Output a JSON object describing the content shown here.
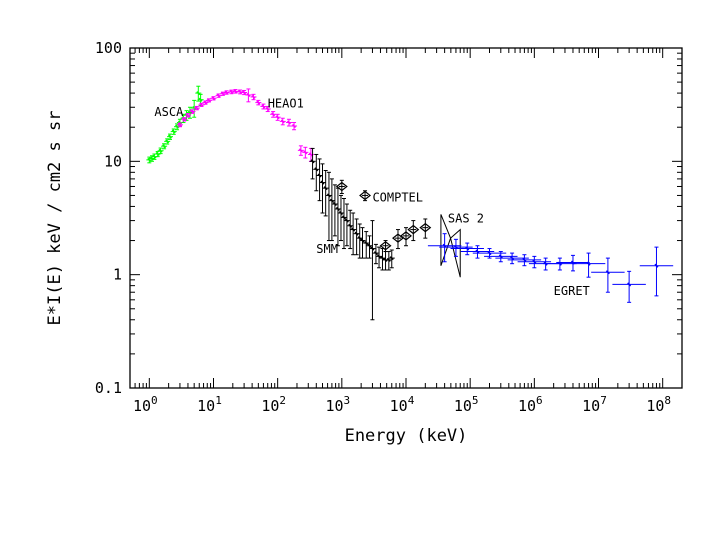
{
  "chart_data": {
    "type": "scatter",
    "xlabel": "Energy (keV)",
    "ylabel": "E*I(E) keV / cm2 s sr",
    "xscale": "log",
    "yscale": "log",
    "xlim": [
      0.5,
      200000000
    ],
    "ylim": [
      0.1,
      100
    ],
    "grid": false,
    "x_tick_labels": [
      "10^0",
      "10^1",
      "10^2",
      "10^3",
      "10^4",
      "10^5",
      "10^6",
      "10^7",
      "10^8"
    ],
    "y_tick_labels": [
      "0.1",
      "1",
      "10",
      "100"
    ],
    "annotations": [
      {
        "text": "ASCA",
        "x": 1.2,
        "y": 25
      },
      {
        "text": "HEAO1",
        "x": 70,
        "y": 30
      },
      {
        "text": "COMPTEL",
        "x": 3000,
        "y": 4.4
      },
      {
        "text": "SAS 2",
        "x": 45000,
        "y": 2.9
      },
      {
        "text": "SMM",
        "x": 400,
        "y": 1.55
      },
      {
        "text": "EGRET",
        "x": 2000000,
        "y": 0.66
      }
    ],
    "series": [
      {
        "name": "ASCA",
        "color": "#00ff00",
        "marker": "cross",
        "points": [
          {
            "x": 1.0,
            "y": 10.3,
            "ey": 0.6
          },
          {
            "x": 1.1,
            "y": 10.6,
            "ey": 0.6
          },
          {
            "x": 1.2,
            "y": 11.0,
            "ey": 0.6
          },
          {
            "x": 1.35,
            "y": 11.6,
            "ey": 0.6
          },
          {
            "x": 1.5,
            "y": 12.4,
            "ey": 0.7
          },
          {
            "x": 1.7,
            "y": 13.6,
            "ey": 0.7
          },
          {
            "x": 1.9,
            "y": 15.0,
            "ey": 0.8
          },
          {
            "x": 2.1,
            "y": 16.5,
            "ey": 0.9
          },
          {
            "x": 2.4,
            "y": 18.3,
            "ey": 1.0
          },
          {
            "x": 2.7,
            "y": 20.2,
            "ey": 1.2
          },
          {
            "x": 3.0,
            "y": 22.0,
            "ey": 1.5
          },
          {
            "x": 3.4,
            "y": 24.0,
            "ey": 2.0
          },
          {
            "x": 3.8,
            "y": 25.5,
            "ey": 2.5
          },
          {
            "x": 4.3,
            "y": 27.0,
            "ey": 3.0
          },
          {
            "x": 5.0,
            "y": 29.5,
            "ey": 5.0
          },
          {
            "x": 5.8,
            "y": 40.0,
            "ey": 6.0
          },
          {
            "x": 6.3,
            "y": 35.0,
            "ey": 4.0
          }
        ]
      },
      {
        "name": "HEAO1",
        "color": "#ff00ff",
        "marker": "cross",
        "points": [
          {
            "x": 3.0,
            "y": 21.0,
            "ey": 0.8
          },
          {
            "x": 3.5,
            "y": 23.5,
            "ey": 0.8
          },
          {
            "x": 4.0,
            "y": 25.5,
            "ey": 0.9
          },
          {
            "x": 4.7,
            "y": 27.5,
            "ey": 1.0
          },
          {
            "x": 5.5,
            "y": 29.5,
            "ey": 1.0
          },
          {
            "x": 6.5,
            "y": 31.5,
            "ey": 1.0
          },
          {
            "x": 7.5,
            "y": 33.0,
            "ey": 1.1
          },
          {
            "x": 8.5,
            "y": 34.5,
            "ey": 1.1
          },
          {
            "x": 10,
            "y": 36.0,
            "ey": 1.2
          },
          {
            "x": 12,
            "y": 38.0,
            "ey": 1.3
          },
          {
            "x": 14,
            "y": 39.5,
            "ey": 1.3
          },
          {
            "x": 16,
            "y": 40.5,
            "ey": 1.4
          },
          {
            "x": 19,
            "y": 41.0,
            "ey": 1.5
          },
          {
            "x": 22,
            "y": 41.5,
            "ey": 1.5
          },
          {
            "x": 26,
            "y": 41.0,
            "ey": 1.6
          },
          {
            "x": 30,
            "y": 40.5,
            "ey": 1.7
          },
          {
            "x": 35,
            "y": 38.5,
            "ey": 5.0
          },
          {
            "x": 42,
            "y": 37.0,
            "ey": 2.0
          },
          {
            "x": 50,
            "y": 33.0,
            "ey": 1.5
          },
          {
            "x": 60,
            "y": 30.5,
            "ey": 1.5
          },
          {
            "x": 70,
            "y": 29.0,
            "ey": 1.5
          },
          {
            "x": 85,
            "y": 26.0,
            "ey": 1.5
          },
          {
            "x": 100,
            "y": 24.5,
            "ey": 1.5
          },
          {
            "x": 120,
            "y": 22.5,
            "ey": 1.5
          },
          {
            "x": 150,
            "y": 22.0,
            "ey": 1.5
          },
          {
            "x": 180,
            "y": 20.5,
            "ey": 1.5
          },
          {
            "x": 230,
            "y": 12.5,
            "ey": 1.2
          },
          {
            "x": 270,
            "y": 12.0,
            "ey": 1.3
          },
          {
            "x": 330,
            "y": 11.5,
            "ey": 1.5
          }
        ]
      },
      {
        "name": "SMM",
        "color": "#000000",
        "marker": "cross",
        "points": [
          {
            "x": 350,
            "y": 10.0,
            "ey": 3.0
          },
          {
            "x": 400,
            "y": 8.5,
            "ey": 3.0
          },
          {
            "x": 450,
            "y": 7.5,
            "ey": 3.0
          },
          {
            "x": 500,
            "y": 6.5,
            "ey": 3.0
          },
          {
            "x": 560,
            "y": 5.8,
            "ey": 2.5
          },
          {
            "x": 630,
            "y": 5.0,
            "ey": 3.0
          },
          {
            "x": 700,
            "y": 4.5,
            "ey": 2.5
          },
          {
            "x": 780,
            "y": 4.2,
            "ey": 2.0
          },
          {
            "x": 870,
            "y": 3.8,
            "ey": 2.0
          },
          {
            "x": 970,
            "y": 3.5,
            "ey": 1.5
          },
          {
            "x": 1080,
            "y": 3.2,
            "ey": 1.5
          },
          {
            "x": 1200,
            "y": 3.0,
            "ey": 1.2
          },
          {
            "x": 1350,
            "y": 2.7,
            "ey": 1.0
          },
          {
            "x": 1500,
            "y": 2.5,
            "ey": 1.0
          },
          {
            "x": 1700,
            "y": 2.3,
            "ey": 0.8
          },
          {
            "x": 1900,
            "y": 2.1,
            "ey": 0.7
          },
          {
            "x": 2100,
            "y": 2.0,
            "ey": 0.6
          },
          {
            "x": 2400,
            "y": 1.9,
            "ey": 0.5
          },
          {
            "x": 2700,
            "y": 1.8,
            "ey": 0.4
          },
          {
            "x": 3000,
            "y": 1.7,
            "ey": 1.3
          },
          {
            "x": 3400,
            "y": 1.55,
            "ey": 0.3
          },
          {
            "x": 3800,
            "y": 1.45,
            "ey": 0.3
          },
          {
            "x": 4300,
            "y": 1.4,
            "ey": 0.3
          },
          {
            "x": 4800,
            "y": 1.35,
            "ey": 0.25
          },
          {
            "x": 5400,
            "y": 1.35,
            "ey": 0.25
          },
          {
            "x": 6000,
            "y": 1.4,
            "ey": 0.25
          }
        ]
      },
      {
        "name": "COMPTEL",
        "color": "#000000",
        "marker": "diamond",
        "points": [
          {
            "x": 1000,
            "y": 6.0,
            "ey": 0.8
          },
          {
            "x": 2300,
            "y": 5.0,
            "ey": 0.5
          },
          {
            "x": 4800,
            "y": 1.8,
            "ey": 0.2
          },
          {
            "x": 7500,
            "y": 2.1,
            "ey": 0.4
          },
          {
            "x": 10000,
            "y": 2.2,
            "ey": 0.4
          },
          {
            "x": 13000,
            "y": 2.5,
            "ey": 0.5
          },
          {
            "x": 20000,
            "y": 2.6,
            "ey": 0.5
          }
        ]
      },
      {
        "name": "SAS 2",
        "color": "#0000ff",
        "marker": "bowtie",
        "points": [
          {
            "x": 35000,
            "y": 1.8,
            "ey": 0.6
          },
          {
            "x": 70000,
            "y": 2.2,
            "ey": 0.3
          }
        ]
      },
      {
        "name": "EGRET",
        "color": "#0000ff",
        "marker": "cross",
        "points": [
          {
            "x": 40000,
            "y": 1.8,
            "ey": 0.5
          },
          {
            "x": 60000,
            "y": 1.75,
            "ey": 0.3
          },
          {
            "x": 90000,
            "y": 1.7,
            "ey": 0.2
          },
          {
            "x": 130000,
            "y": 1.6,
            "ey": 0.2
          },
          {
            "x": 200000,
            "y": 1.55,
            "ey": 0.15
          },
          {
            "x": 300000,
            "y": 1.45,
            "ey": 0.15
          },
          {
            "x": 450000,
            "y": 1.4,
            "ey": 0.15
          },
          {
            "x": 700000,
            "y": 1.35,
            "ey": 0.15
          },
          {
            "x": 1000000,
            "y": 1.3,
            "ey": 0.15
          },
          {
            "x": 1500000,
            "y": 1.25,
            "ey": 0.15
          },
          {
            "x": 2500000,
            "y": 1.25,
            "ey": 0.15
          },
          {
            "x": 4000000,
            "y": 1.28,
            "ey": 0.2
          },
          {
            "x": 7000000,
            "y": 1.25,
            "ey": 0.3
          },
          {
            "x": 14000000,
            "y": 1.05,
            "ey": 0.35
          },
          {
            "x": 30000000,
            "y": 0.82,
            "ey": 0.25
          },
          {
            "x": 80000000,
            "y": 1.2,
            "ey": 0.55
          }
        ]
      }
    ]
  }
}
